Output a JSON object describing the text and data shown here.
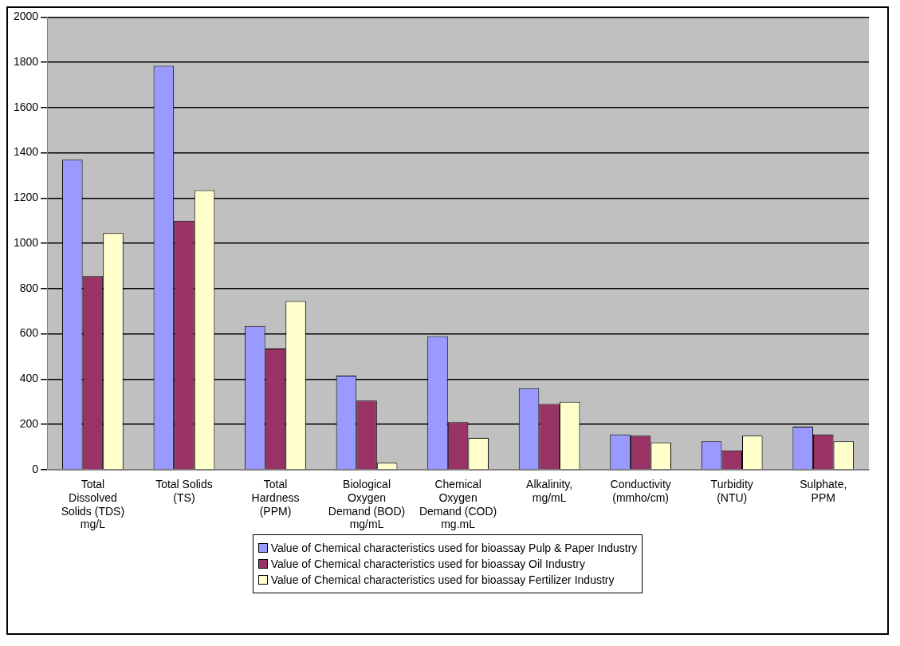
{
  "chart_data": {
    "type": "bar",
    "categories": [
      "Total Dissolved Solids (TDS) mg/L",
      "Total Solids (TS)",
      "Total Hardness (PPM)",
      "Biological Oxygen Demand (BOD) mg/mL",
      "Chemical Oxygen Demand (COD) mg.mL",
      "Alkalinity, mg/mL",
      "Conductivity (mmho/cm)",
      "Turbidity (NTU)",
      "Sulphate, PPM"
    ],
    "series": [
      {
        "name": "Value of Chemical characteristics used for bioassay Pulp & Paper Industry",
        "color": "#9999ff",
        "values": [
          1370,
          1785,
          635,
          415,
          590,
          360,
          155,
          125,
          190
        ]
      },
      {
        "name": "Value of Chemical characteristics used for bioassay Oil Industry",
        "color": "#993366",
        "values": [
          855,
          1100,
          535,
          305,
          210,
          290,
          150,
          85,
          155
        ]
      },
      {
        "name": "Value of Chemical characteristics used for bioassay Fertilizer Industry",
        "color": "#ffffcc",
        "values": [
          1045,
          1235,
          745,
          30,
          140,
          300,
          120,
          150,
          125
        ]
      }
    ],
    "ylim": [
      0,
      2000
    ],
    "yticks": [
      0,
      200,
      400,
      600,
      800,
      1000,
      1200,
      1400,
      1600,
      1800,
      2000
    ],
    "grid": "y",
    "legend": "bottom"
  }
}
